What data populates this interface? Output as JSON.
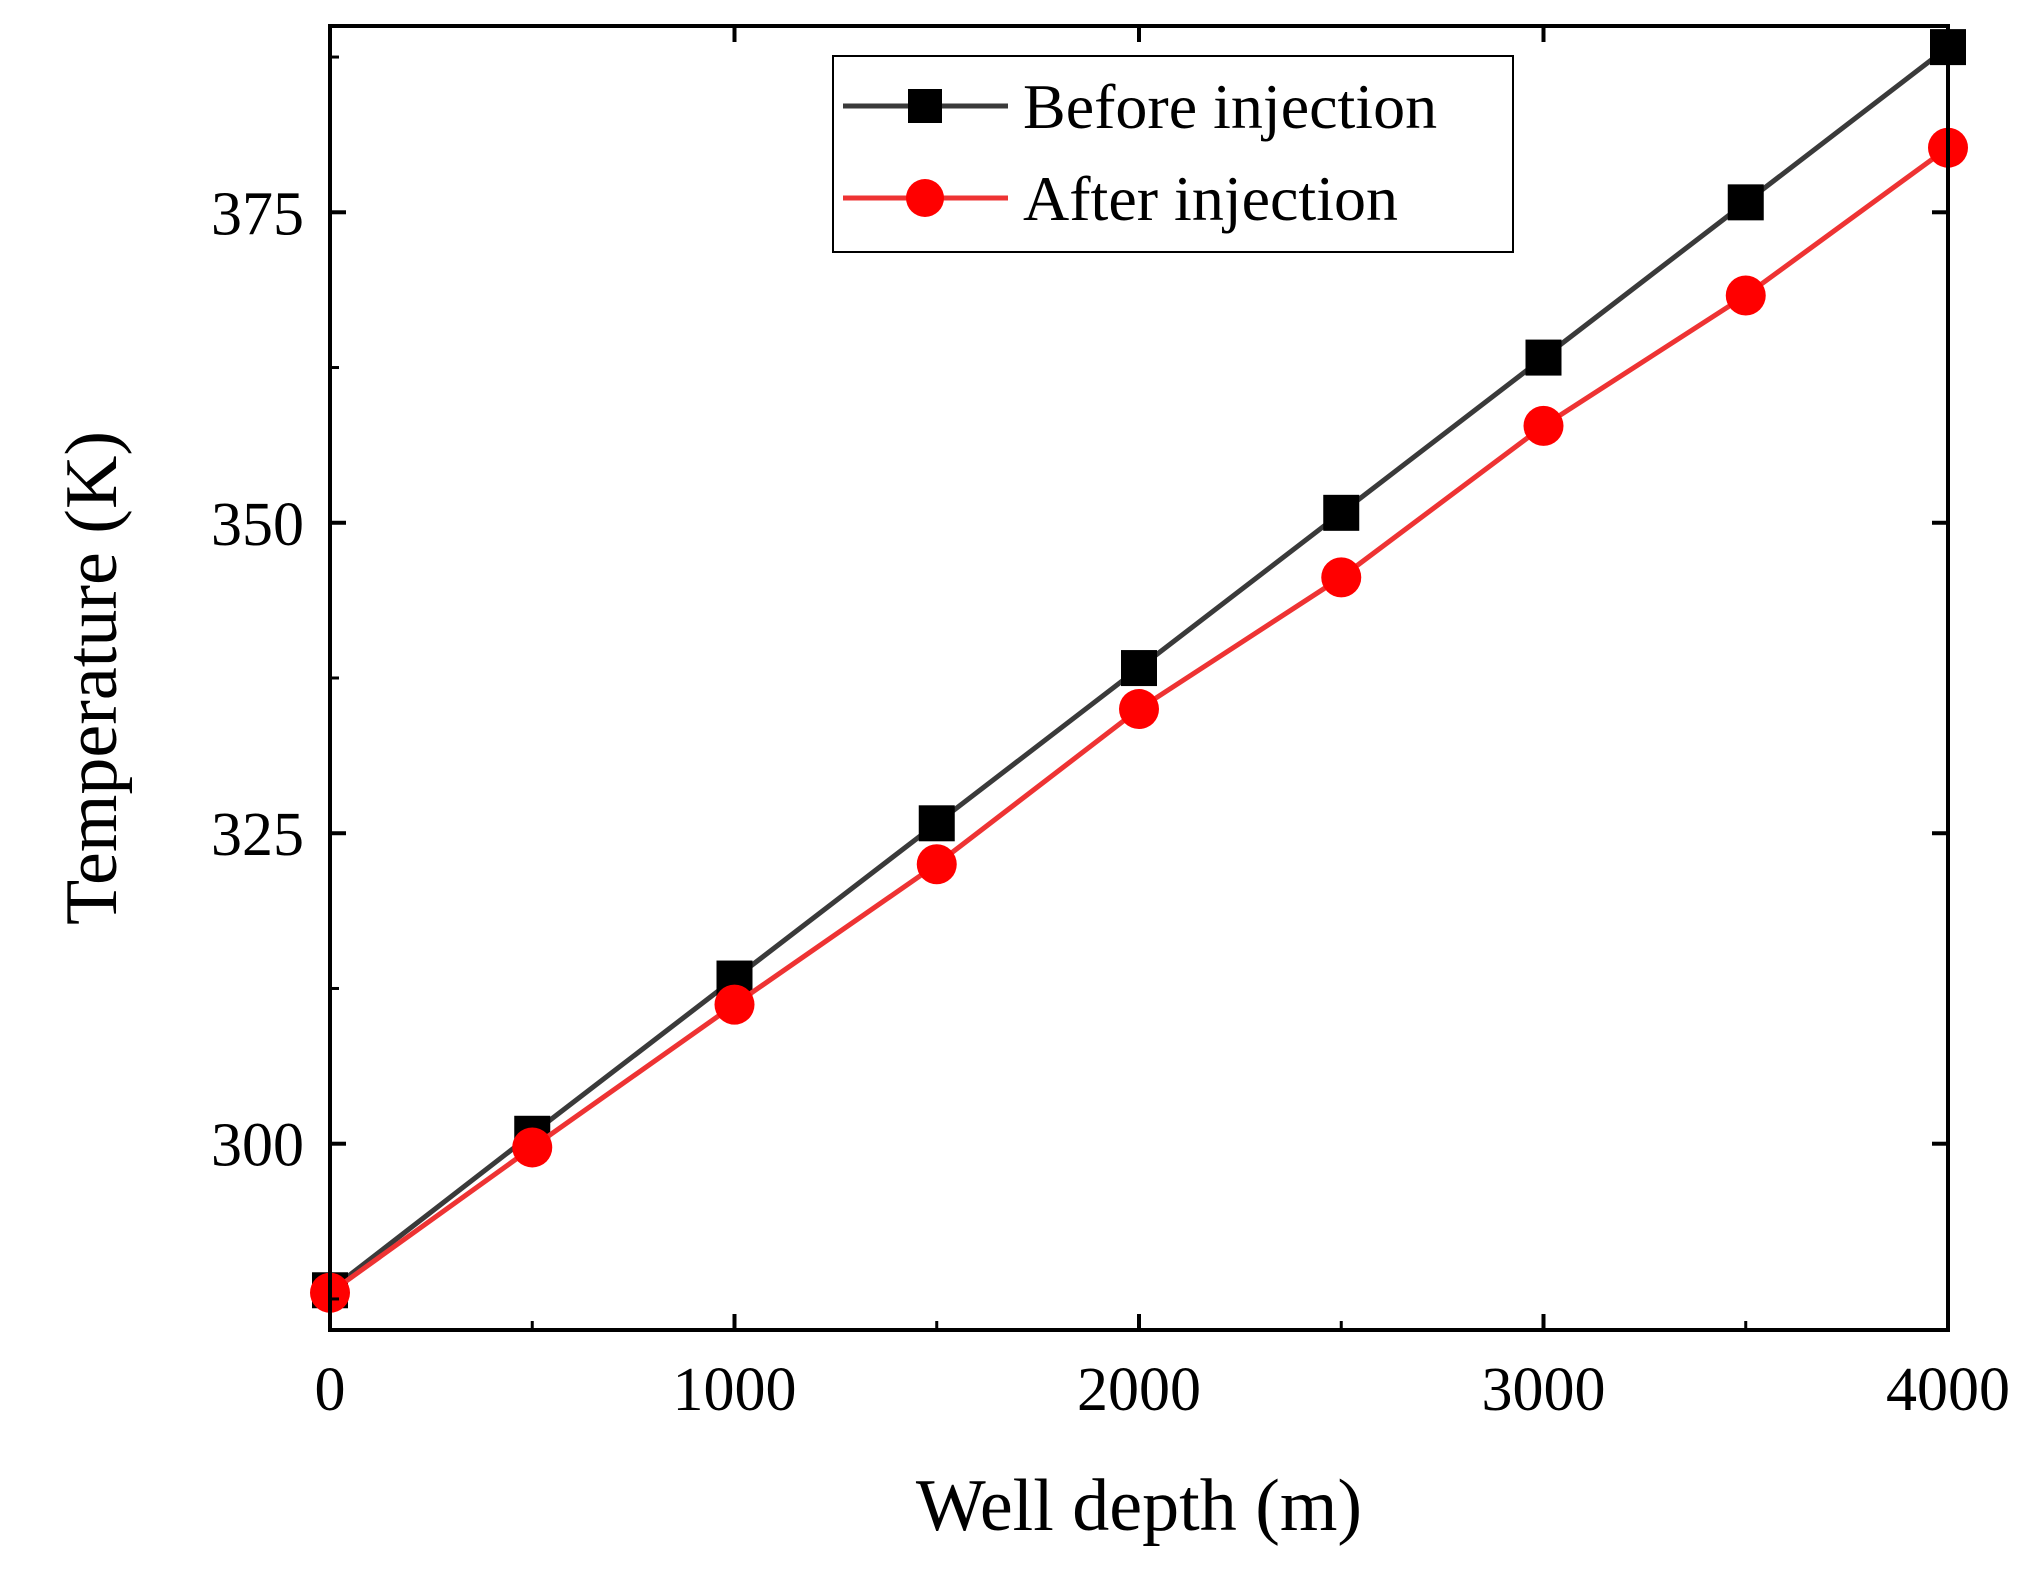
{
  "chart_data": {
    "type": "line",
    "title": "",
    "xlabel": "Well depth (m)",
    "ylabel": "Temperature (K)",
    "xlim": [
      0,
      4000
    ],
    "ylim": [
      285,
      390
    ],
    "xticks": [
      0,
      1000,
      2000,
      3000,
      4000
    ],
    "yticks": [
      300,
      325,
      350,
      375
    ],
    "grid": false,
    "legend_position": "top-right",
    "x": [
      0,
      500,
      1000,
      1500,
      2000,
      2500,
      3000,
      3500,
      4000
    ],
    "series": [
      {
        "name": "Before injection",
        "color": "#000000",
        "line_color": "#3a3a3a",
        "marker": "square",
        "values": [
          288.2,
          300.8,
          313.3,
          325.8,
          338.3,
          350.8,
          363.3,
          375.8,
          388.3
        ]
      },
      {
        "name": "After injection",
        "color": "#ff0000",
        "line_color": "#ee3333",
        "marker": "circle",
        "values": [
          288.0,
          299.7,
          311.2,
          322.5,
          335.0,
          345.6,
          357.8,
          368.3,
          380.2
        ]
      }
    ]
  }
}
